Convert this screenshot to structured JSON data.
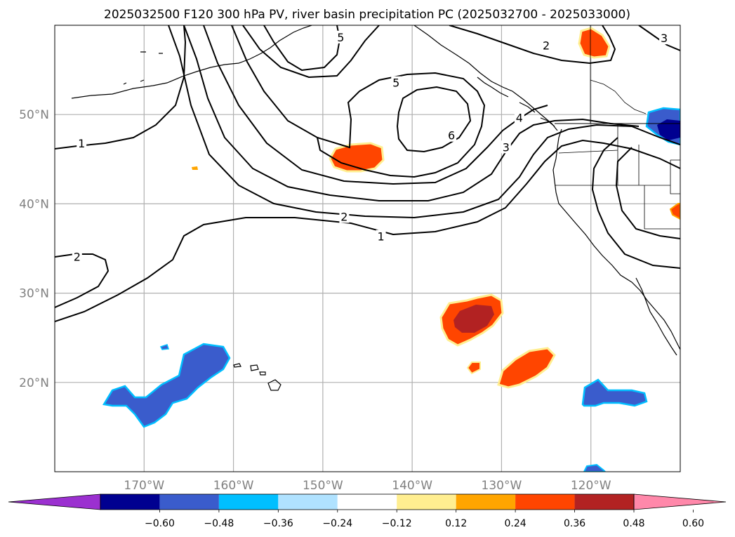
{
  "title": "2025032500 F120 300 hPa PV, river basin precipitation PC (2025032700 - 2025033000)",
  "map": {
    "lon_range": [
      -180,
      -110
    ],
    "lat_range": [
      10,
      60
    ],
    "lon_ticks": [
      {
        "lon": -170,
        "label": "170°W"
      },
      {
        "lon": -160,
        "label": "160°W"
      },
      {
        "lon": -150,
        "label": "150°W"
      },
      {
        "lon": -140,
        "label": "140°W"
      },
      {
        "lon": -130,
        "label": "130°W"
      },
      {
        "lon": -120,
        "label": "120°W"
      }
    ],
    "lat_ticks": [
      {
        "lat": 50,
        "label": "50°N"
      },
      {
        "lat": 40,
        "label": "40°N"
      },
      {
        "lat": 30,
        "label": "30°N"
      },
      {
        "lat": 20,
        "label": "20°N"
      }
    ],
    "gridlines": true
  },
  "contour_labels": [
    {
      "text": "1",
      "lon": -177,
      "lat": 46.7
    },
    {
      "text": "1",
      "lon": -143.5,
      "lat": 36.3
    },
    {
      "text": "2",
      "lon": -177.5,
      "lat": 34.0
    },
    {
      "text": "2",
      "lon": -147.6,
      "lat": 38.5
    },
    {
      "text": "2",
      "lon": -125.0,
      "lat": 57.7
    },
    {
      "text": "3",
      "lon": -129.5,
      "lat": 46.3
    },
    {
      "text": "3",
      "lon": -111.8,
      "lat": 58.5
    },
    {
      "text": "4",
      "lon": -128.0,
      "lat": 49.6
    },
    {
      "text": "5",
      "lon": -148.0,
      "lat": 58.6
    },
    {
      "text": "5",
      "lon": -141.8,
      "lat": 53.5
    },
    {
      "text": "6",
      "lon": -135.6,
      "lat": 47.6
    }
  ],
  "colorbar": {
    "colors": [
      "#9b30d0",
      "#000090",
      "#3a5ccc",
      "#00bfff",
      "#b0e2ff",
      "#ffffff",
      "#ffee90",
      "#ffa500",
      "#ff4500",
      "#b22222",
      "#ff88aa"
    ],
    "ticks": [
      "−0.60",
      "−0.48",
      "−0.36",
      "−0.24",
      "−0.12",
      "0.12",
      "0.24",
      "0.36",
      "0.48",
      "0.60"
    ]
  }
}
